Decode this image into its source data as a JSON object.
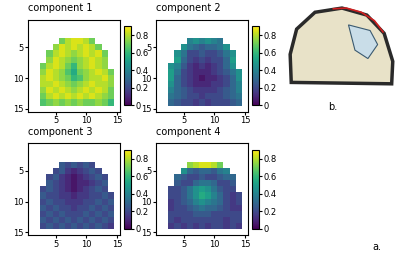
{
  "chart_data": [
    {
      "type": "heatmap",
      "title": "component 1",
      "x": [
        1,
        2,
        3,
        4,
        5,
        6,
        7,
        8,
        9,
        10,
        11,
        12,
        13,
        14,
        15
      ],
      "y": [
        1,
        2,
        3,
        4,
        5,
        6,
        7,
        8,
        9,
        10,
        11,
        12,
        13,
        14,
        15
      ],
      "xlim": [
        0.5,
        15.5
      ],
      "ylim": [
        15.5,
        0.5
      ],
      "xticks": [
        5,
        10,
        15
      ],
      "yticks": [
        5,
        10,
        15
      ],
      "colorbar": {
        "range": [
          0,
          0.9
        ],
        "ticks": [
          0,
          0.2,
          0.4,
          0.6,
          0.8
        ]
      },
      "cells": [
        [
          null,
          null,
          null,
          null,
          null,
          null,
          null,
          null,
          null,
          null,
          null,
          null,
          null,
          null,
          null
        ],
        [
          null,
          null,
          null,
          null,
          null,
          null,
          null,
          null,
          null,
          null,
          null,
          null,
          null,
          null,
          null
        ],
        [
          null,
          null,
          null,
          null,
          null,
          null,
          null,
          null,
          null,
          null,
          null,
          null,
          null,
          null,
          null
        ],
        [
          null,
          null,
          null,
          null,
          null,
          0.7,
          0.8,
          0.85,
          0.85,
          0.8,
          0.7,
          null,
          null,
          null,
          null
        ],
        [
          null,
          null,
          null,
          null,
          0.75,
          0.85,
          0.8,
          0.85,
          0.8,
          0.85,
          0.8,
          0.7,
          null,
          null,
          null
        ],
        [
          null,
          null,
          null,
          0.7,
          0.8,
          0.85,
          0.8,
          0.75,
          0.8,
          0.85,
          0.8,
          0.85,
          0.7,
          null,
          null
        ],
        [
          null,
          null,
          null,
          0.75,
          0.85,
          0.8,
          0.75,
          0.7,
          0.75,
          0.8,
          0.85,
          0.8,
          0.75,
          null,
          null
        ],
        [
          null,
          null,
          0.7,
          0.8,
          0.85,
          0.8,
          0.7,
          0.6,
          0.75,
          0.8,
          0.85,
          0.8,
          0.75,
          null,
          null
        ],
        [
          null,
          null,
          0.75,
          0.85,
          0.8,
          0.75,
          0.65,
          0.55,
          0.7,
          0.75,
          0.8,
          0.85,
          0.8,
          0.7,
          null
        ],
        [
          null,
          null,
          0.8,
          0.85,
          0.8,
          0.75,
          0.7,
          0.6,
          0.65,
          0.75,
          0.8,
          0.8,
          0.85,
          0.75,
          null
        ],
        [
          null,
          null,
          0.8,
          0.8,
          0.85,
          0.8,
          0.75,
          0.7,
          0.75,
          0.8,
          0.85,
          0.8,
          0.8,
          0.75,
          null
        ],
        [
          null,
          null,
          0.75,
          0.85,
          0.8,
          0.85,
          0.8,
          0.75,
          0.8,
          0.85,
          0.8,
          0.85,
          0.8,
          0.7,
          null
        ],
        [
          null,
          null,
          0.7,
          0.8,
          0.85,
          0.8,
          0.85,
          0.8,
          0.85,
          0.8,
          0.85,
          0.8,
          0.75,
          0.7,
          null
        ],
        [
          null,
          null,
          0.65,
          0.7,
          0.75,
          0.7,
          0.75,
          0.7,
          0.75,
          0.7,
          0.7,
          0.75,
          0.7,
          0.6,
          null
        ],
        [
          null,
          null,
          null,
          null,
          null,
          null,
          null,
          null,
          null,
          null,
          null,
          null,
          null,
          null,
          null
        ]
      ]
    },
    {
      "type": "heatmap",
      "title": "component 2",
      "x": [
        1,
        2,
        3,
        4,
        5,
        6,
        7,
        8,
        9,
        10,
        11,
        12,
        13,
        14,
        15
      ],
      "y": [
        1,
        2,
        3,
        4,
        5,
        6,
        7,
        8,
        9,
        10,
        11,
        12,
        13,
        14,
        15
      ],
      "xlim": [
        0.5,
        15.5
      ],
      "ylim": [
        15.5,
        0.5
      ],
      "xticks": [
        5,
        10,
        15
      ],
      "yticks": [
        5,
        10,
        15
      ],
      "colorbar": {
        "range": [
          0,
          0.9
        ],
        "ticks": [
          0,
          0.2,
          0.4,
          0.6,
          0.8
        ]
      },
      "cells": [
        [
          null,
          null,
          null,
          null,
          null,
          null,
          null,
          null,
          null,
          null,
          null,
          null,
          null,
          null,
          null
        ],
        [
          null,
          null,
          null,
          null,
          null,
          null,
          null,
          null,
          null,
          null,
          null,
          null,
          null,
          null,
          null
        ],
        [
          null,
          null,
          null,
          null,
          null,
          null,
          null,
          null,
          null,
          null,
          null,
          null,
          null,
          null,
          null
        ],
        [
          null,
          null,
          null,
          null,
          null,
          0.4,
          0.45,
          0.4,
          0.45,
          0.4,
          0.35,
          null,
          null,
          null,
          null
        ],
        [
          null,
          null,
          null,
          null,
          0.45,
          0.35,
          0.3,
          0.25,
          0.3,
          0.3,
          0.35,
          0.45,
          null,
          null,
          null
        ],
        [
          null,
          null,
          null,
          0.45,
          0.35,
          0.2,
          0.2,
          0.25,
          0.2,
          0.2,
          0.25,
          0.35,
          0.45,
          null,
          null
        ],
        [
          null,
          null,
          null,
          0.5,
          0.3,
          0.2,
          0.15,
          0.2,
          0.15,
          0.2,
          0.2,
          0.3,
          0.5,
          null,
          null
        ],
        [
          null,
          null,
          0.45,
          0.4,
          0.25,
          0.15,
          0.1,
          0.15,
          0.1,
          0.15,
          0.2,
          0.3,
          0.45,
          null,
          null
        ],
        [
          null,
          null,
          0.5,
          0.35,
          0.2,
          0.15,
          0.1,
          0.1,
          0.1,
          0.15,
          0.2,
          0.25,
          0.35,
          0.45,
          null
        ],
        [
          null,
          null,
          0.5,
          0.3,
          0.2,
          0.15,
          0.1,
          0.05,
          0.1,
          0.1,
          0.15,
          0.2,
          0.3,
          0.45,
          null
        ],
        [
          null,
          null,
          0.45,
          0.3,
          0.2,
          0.15,
          0.1,
          0.1,
          0.1,
          0.15,
          0.15,
          0.2,
          0.3,
          0.4,
          null
        ],
        [
          null,
          null,
          0.4,
          0.3,
          0.25,
          0.2,
          0.15,
          0.15,
          0.15,
          0.15,
          0.2,
          0.25,
          0.3,
          0.4,
          null
        ],
        [
          null,
          null,
          0.35,
          0.3,
          0.25,
          0.2,
          0.2,
          0.15,
          0.2,
          0.2,
          0.2,
          0.25,
          0.3,
          0.35,
          null
        ],
        [
          null,
          null,
          0.3,
          0.25,
          0.2,
          0.2,
          0.15,
          0.2,
          0.15,
          0.2,
          0.2,
          0.2,
          0.25,
          0.3,
          null
        ],
        [
          null,
          null,
          null,
          null,
          null,
          null,
          null,
          null,
          null,
          null,
          null,
          null,
          null,
          null,
          null
        ]
      ]
    },
    {
      "type": "heatmap",
      "title": "component 3",
      "x": [
        1,
        2,
        3,
        4,
        5,
        6,
        7,
        8,
        9,
        10,
        11,
        12,
        13,
        14,
        15
      ],
      "y": [
        1,
        2,
        3,
        4,
        5,
        6,
        7,
        8,
        9,
        10,
        11,
        12,
        13,
        14,
        15
      ],
      "xlim": [
        0.5,
        15.5
      ],
      "ylim": [
        15.5,
        0.5
      ],
      "xticks": [
        5,
        10,
        15
      ],
      "yticks": [
        5,
        10,
        15
      ],
      "colorbar": {
        "range": [
          0,
          0.9
        ],
        "ticks": [
          0,
          0.2,
          0.4,
          0.6,
          0.8
        ]
      },
      "cells": [
        [
          null,
          null,
          null,
          null,
          null,
          null,
          null,
          null,
          null,
          null,
          null,
          null,
          null,
          null,
          null
        ],
        [
          null,
          null,
          null,
          null,
          null,
          null,
          null,
          null,
          null,
          null,
          null,
          null,
          null,
          null,
          null
        ],
        [
          null,
          null,
          null,
          null,
          null,
          null,
          null,
          null,
          null,
          null,
          null,
          null,
          null,
          null,
          null
        ],
        [
          null,
          null,
          null,
          null,
          null,
          0.25,
          0.2,
          0.25,
          0.2,
          0.25,
          0.2,
          null,
          null,
          null,
          null
        ],
        [
          null,
          null,
          null,
          null,
          0.2,
          0.25,
          0.15,
          0.1,
          0.15,
          0.2,
          0.25,
          0.2,
          null,
          null,
          null
        ],
        [
          null,
          null,
          null,
          0.2,
          0.25,
          0.15,
          0.1,
          0.05,
          0.1,
          0.15,
          0.2,
          0.25,
          0.2,
          null,
          null
        ],
        [
          null,
          null,
          null,
          0.25,
          0.2,
          0.15,
          0.1,
          0.05,
          0.1,
          0.1,
          0.15,
          0.2,
          0.25,
          null,
          null
        ],
        [
          null,
          null,
          0.2,
          0.25,
          0.2,
          0.15,
          0.1,
          0.05,
          0.1,
          0.15,
          0.2,
          0.25,
          0.2,
          null,
          null
        ],
        [
          null,
          null,
          0.25,
          0.2,
          0.2,
          0.15,
          0.15,
          0.1,
          0.15,
          0.15,
          0.2,
          0.2,
          0.25,
          0.2,
          null
        ],
        [
          null,
          null,
          0.2,
          0.25,
          0.2,
          0.2,
          0.15,
          0.15,
          0.15,
          0.2,
          0.2,
          0.25,
          0.2,
          0.25,
          null
        ],
        [
          null,
          null,
          0.25,
          0.2,
          0.25,
          0.2,
          0.2,
          0.15,
          0.2,
          0.2,
          0.25,
          0.2,
          0.25,
          0.2,
          null
        ],
        [
          null,
          null,
          0.2,
          0.25,
          0.2,
          0.25,
          0.2,
          0.2,
          0.2,
          0.25,
          0.2,
          0.25,
          0.2,
          0.25,
          null
        ],
        [
          null,
          null,
          0.25,
          0.2,
          0.25,
          0.2,
          0.25,
          0.2,
          0.25,
          0.2,
          0.25,
          0.2,
          0.25,
          0.2,
          null
        ],
        [
          null,
          null,
          0.2,
          0.25,
          0.2,
          0.25,
          0.2,
          0.25,
          0.2,
          0.25,
          0.2,
          0.25,
          0.2,
          0.15,
          null
        ],
        [
          null,
          null,
          null,
          null,
          null,
          null,
          null,
          null,
          null,
          null,
          null,
          null,
          null,
          null,
          null
        ]
      ]
    },
    {
      "type": "heatmap",
      "title": "component 4",
      "x": [
        1,
        2,
        3,
        4,
        5,
        6,
        7,
        8,
        9,
        10,
        11,
        12,
        13,
        14,
        15
      ],
      "y": [
        1,
        2,
        3,
        4,
        5,
        6,
        7,
        8,
        9,
        10,
        11,
        12,
        13,
        14,
        15
      ],
      "xlim": [
        0.5,
        15.5
      ],
      "ylim": [
        15.5,
        0.5
      ],
      "xticks": [
        5,
        10,
        15
      ],
      "yticks": [
        5,
        10,
        15
      ],
      "colorbar": {
        "range": [
          0,
          0.9
        ],
        "ticks": [
          0,
          0.2,
          0.4,
          0.6,
          0.8
        ]
      },
      "cells": [
        [
          null,
          null,
          null,
          null,
          null,
          null,
          null,
          null,
          null,
          null,
          null,
          null,
          null,
          null,
          null
        ],
        [
          null,
          null,
          null,
          null,
          null,
          null,
          null,
          null,
          null,
          null,
          null,
          null,
          null,
          null,
          null
        ],
        [
          null,
          null,
          null,
          null,
          null,
          null,
          null,
          null,
          null,
          null,
          null,
          null,
          null,
          null,
          null
        ],
        [
          null,
          null,
          null,
          null,
          null,
          0.75,
          0.8,
          0.85,
          0.85,
          0.8,
          0.7,
          null,
          null,
          null,
          null
        ],
        [
          null,
          null,
          null,
          null,
          0.45,
          0.3,
          0.25,
          0.3,
          0.3,
          0.25,
          0.35,
          0.4,
          null,
          null,
          null
        ],
        [
          null,
          null,
          null,
          0.3,
          0.25,
          0.2,
          0.2,
          0.25,
          0.2,
          0.2,
          0.25,
          0.3,
          0.3,
          null,
          null
        ],
        [
          null,
          null,
          null,
          0.25,
          0.2,
          0.2,
          0.3,
          0.35,
          0.35,
          0.3,
          0.2,
          0.2,
          0.25,
          null,
          null
        ],
        [
          null,
          null,
          0.2,
          0.2,
          0.25,
          0.35,
          0.45,
          0.5,
          0.45,
          0.35,
          0.25,
          0.2,
          0.2,
          null,
          null
        ],
        [
          null,
          null,
          0.2,
          0.2,
          0.25,
          0.35,
          0.45,
          0.55,
          0.5,
          0.4,
          0.3,
          0.2,
          0.15,
          0.2,
          null
        ],
        [
          null,
          null,
          0.15,
          0.2,
          0.25,
          0.3,
          0.4,
          0.45,
          0.4,
          0.35,
          0.3,
          0.2,
          0.15,
          0.2,
          null
        ],
        [
          null,
          null,
          0.15,
          0.2,
          0.2,
          0.25,
          0.3,
          0.35,
          0.3,
          0.3,
          0.25,
          0.2,
          0.15,
          0.15,
          null
        ],
        [
          null,
          null,
          0.2,
          0.2,
          0.2,
          0.2,
          0.25,
          0.25,
          0.25,
          0.2,
          0.2,
          0.2,
          0.2,
          0.2,
          null
        ],
        [
          null,
          null,
          0.2,
          0.15,
          0.2,
          0.2,
          0.2,
          0.2,
          0.2,
          0.2,
          0.2,
          0.15,
          0.2,
          0.2,
          null
        ],
        [
          null,
          null,
          0.15,
          0.2,
          0.15,
          0.2,
          0.15,
          0.2,
          0.15,
          0.2,
          0.2,
          0.15,
          0.2,
          0.15,
          null
        ],
        [
          null,
          null,
          null,
          null,
          null,
          null,
          null,
          null,
          null,
          null,
          null,
          null,
          null,
          null,
          null
        ]
      ]
    }
  ],
  "panel_labels": {
    "a": "a.",
    "b": "b."
  }
}
